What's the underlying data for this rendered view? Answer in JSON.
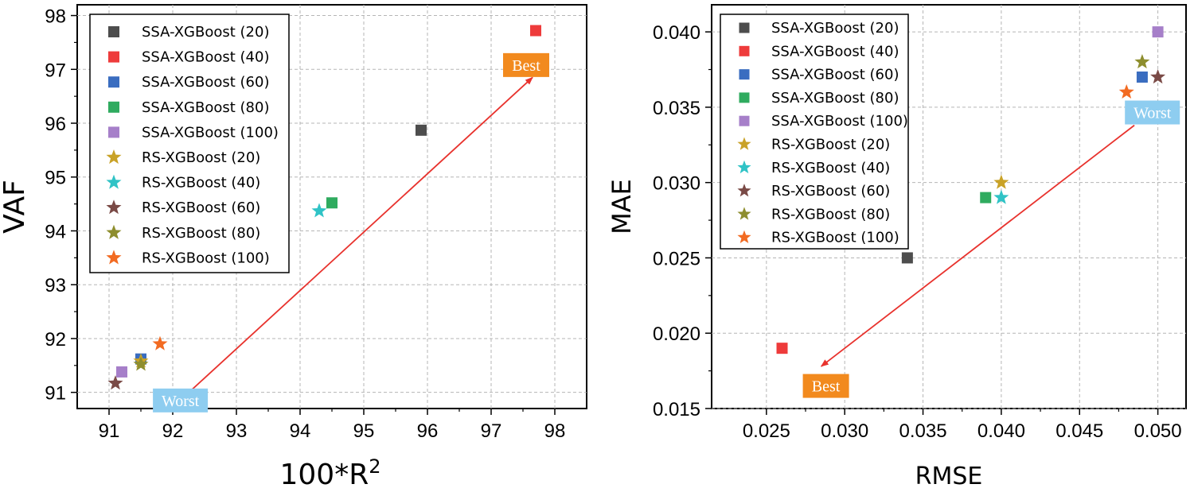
{
  "chart_data": [
    {
      "type": "scatter",
      "xlabel": "100*R",
      "xlabel_sup": "2",
      "ylabel": "VAF",
      "xlim": [
        90.5,
        98.5
      ],
      "ylim": [
        90.7,
        98.2
      ],
      "xticks": [
        91,
        92,
        93,
        94,
        95,
        96,
        97,
        98
      ],
      "yticks": [
        91,
        92,
        93,
        94,
        95,
        96,
        97,
        98
      ],
      "grid": true,
      "legend_position": "top-left",
      "series": [
        {
          "name": "SSA-XGBoost (20)",
          "marker": "square",
          "color": "#4d4d4d",
          "x": 95.9,
          "y": 95.87
        },
        {
          "name": "SSA-XGBoost (40)",
          "marker": "square",
          "color": "#ee3b3b",
          "x": 97.7,
          "y": 97.72
        },
        {
          "name": "SSA-XGBoost (60)",
          "marker": "square",
          "color": "#3a6dc0",
          "x": 91.5,
          "y": 91.62
        },
        {
          "name": "SSA-XGBoost (80)",
          "marker": "square",
          "color": "#2fab5f",
          "x": 94.5,
          "y": 94.52
        },
        {
          "name": "SSA-XGBoost (100)",
          "marker": "square",
          "color": "#a67fc9",
          "x": 91.2,
          "y": 91.38
        },
        {
          "name": "RS-XGBoost (20)",
          "marker": "star",
          "color": "#c9a227",
          "x": 91.5,
          "y": 91.58
        },
        {
          "name": "RS-XGBoost (40)",
          "marker": "star",
          "color": "#30c3c6",
          "x": 94.3,
          "y": 94.37
        },
        {
          "name": "RS-XGBoost (60)",
          "marker": "star",
          "color": "#7a4a46",
          "x": 91.1,
          "y": 91.17
        },
        {
          "name": "RS-XGBoost (80)",
          "marker": "star",
          "color": "#8e8e2e",
          "x": 91.5,
          "y": 91.52
        },
        {
          "name": "RS-XGBoost (100)",
          "marker": "star",
          "color": "#f26b22",
          "x": 91.8,
          "y": 91.9
        }
      ],
      "arrow": {
        "from": [
          92.3,
          91.05
        ],
        "to": [
          97.65,
          96.85
        ],
        "color": "#e8322d"
      },
      "annotations": [
        {
          "text": "Best",
          "x": 97.55,
          "y": 97.08,
          "bg": "#f28a1e"
        },
        {
          "text": "Worst",
          "x": 92.12,
          "y": 90.85,
          "bg": "#8ecdf0"
        }
      ]
    },
    {
      "type": "scatter",
      "xlabel": "RMSE",
      "ylabel": "MAE",
      "xlim": [
        0.0215,
        0.0518
      ],
      "ylim": [
        0.015,
        0.0418
      ],
      "xticks": [
        "0.025",
        "0.030",
        "0.035",
        "0.040",
        "0.045",
        "0.050"
      ],
      "yticks": [
        "0.015",
        "0.020",
        "0.025",
        "0.030",
        "0.035",
        "0.040"
      ],
      "grid": true,
      "legend_position": "top-left",
      "series": [
        {
          "name": "SSA-XGBoost (20)",
          "marker": "square",
          "color": "#4d4d4d",
          "x": 0.034,
          "y": 0.025
        },
        {
          "name": "SSA-XGBoost (40)",
          "marker": "square",
          "color": "#ee3b3b",
          "x": 0.026,
          "y": 0.019
        },
        {
          "name": "SSA-XGBoost (60)",
          "marker": "square",
          "color": "#3a6dc0",
          "x": 0.049,
          "y": 0.037
        },
        {
          "name": "SSA-XGBoost (80)",
          "marker": "square",
          "color": "#2fab5f",
          "x": 0.039,
          "y": 0.029
        },
        {
          "name": "SSA-XGBoost (100)",
          "marker": "square",
          "color": "#a67fc9",
          "x": 0.05,
          "y": 0.04
        },
        {
          "name": "RS-XGBoost (20)",
          "marker": "star",
          "color": "#c9a227",
          "x": 0.04,
          "y": 0.03
        },
        {
          "name": "RS-XGBoost (40)",
          "marker": "star",
          "color": "#30c3c6",
          "x": 0.04,
          "y": 0.029
        },
        {
          "name": "RS-XGBoost (60)",
          "marker": "star",
          "color": "#7a4a46",
          "x": 0.05,
          "y": 0.037
        },
        {
          "name": "RS-XGBoost (80)",
          "marker": "star",
          "color": "#8e8e2e",
          "x": 0.049,
          "y": 0.038
        },
        {
          "name": "RS-XGBoost (100)",
          "marker": "star",
          "color": "#f26b22",
          "x": 0.048,
          "y": 0.036
        }
      ],
      "arrow": {
        "from": [
          0.0485,
          0.0338
        ],
        "to": [
          0.0285,
          0.0178
        ],
        "color": "#e8322d"
      },
      "annotations": [
        {
          "text": "Worst",
          "x": 0.04965,
          "y": 0.03465,
          "bg": "#8ecdf0"
        },
        {
          "text": "Best",
          "x": 0.0288,
          "y": 0.0165,
          "bg": "#f28a1e"
        }
      ]
    }
  ]
}
